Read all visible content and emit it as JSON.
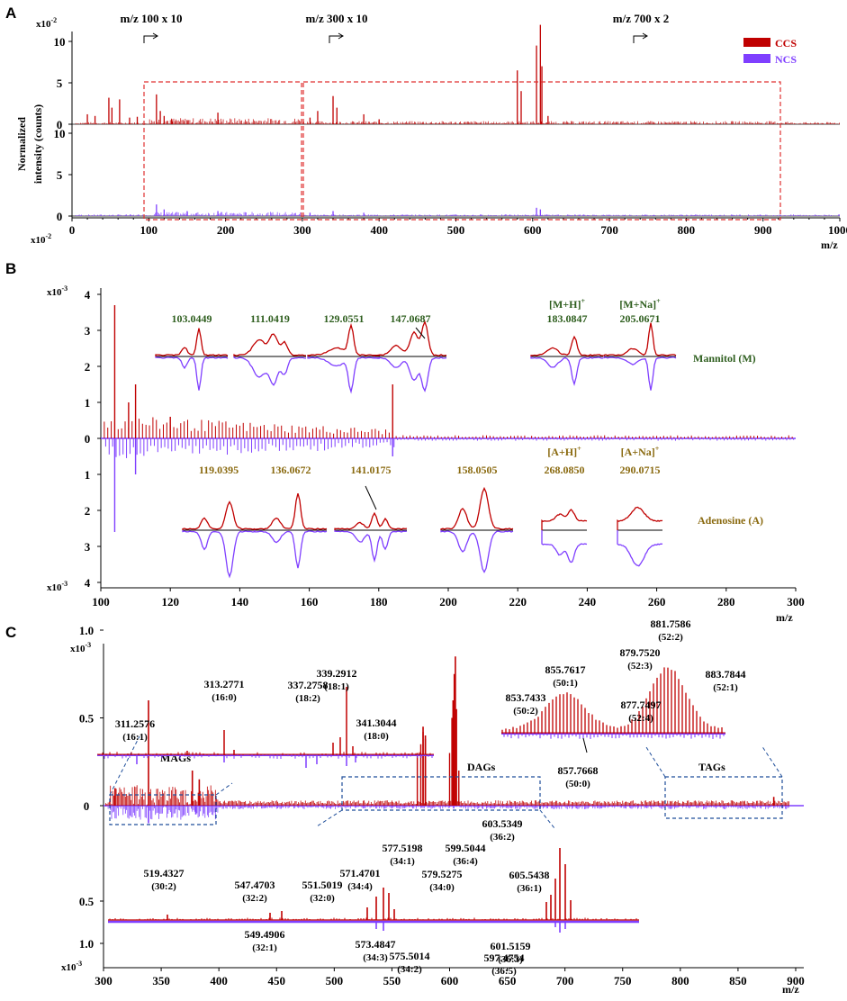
{
  "colors": {
    "ccs": "#c00000",
    "ncs": "#7f3fff",
    "box_red": "#e03030",
    "box_blue": "#1f4e9a",
    "mannitol": "#2e5e1e",
    "adenosine": "#8a6a10",
    "axis": "#000000",
    "baseline": "#000000"
  },
  "panels": {
    "A": {
      "letter": "A",
      "scale_top": "x10",
      "scale_top_exp": "-2",
      "scale_bottom": "x10",
      "scale_bottom_exp": "-2",
      "ylabel_line1": "Normalized",
      "ylabel_line2": "intensity (counts)",
      "xlabel": "m/z",
      "legend": [
        {
          "name": "CCS",
          "color": "#c00000"
        },
        {
          "name": "NCS",
          "color": "#7f3fff"
        }
      ],
      "zoom_labels": [
        "m/z 100 x 10",
        "m/z 300 x 10",
        "m/z 700 x 2"
      ],
      "zoom_positions": [
        100,
        300,
        700
      ]
    },
    "B": {
      "letter": "B",
      "scale_top": "x10",
      "scale_top_exp": "-3",
      "scale_bottom": "x10",
      "scale_bottom_exp": "-3",
      "xlabel": "m/z",
      "mannitol_label": "Mannitol (M)",
      "adenosine_label": "Adenosine (A)",
      "mannitol_insets": [
        {
          "l1": "",
          "l2": "103.0449"
        },
        {
          "l1": "",
          "l2": "111.0419"
        },
        {
          "l1": "",
          "l2": "129.0551"
        },
        {
          "l1": "",
          "l2": "147.0687"
        },
        {
          "l1": "[M+H]",
          "sup": "+",
          "l2": "183.0847"
        },
        {
          "l1": "[M+Na]",
          "sup": "+",
          "l2": "205.0671"
        }
      ],
      "adenosine_insets": [
        {
          "l1": "",
          "l2": "119.0395"
        },
        {
          "l1": "",
          "l2": "136.0672"
        },
        {
          "l1": "",
          "l2": "141.0175"
        },
        {
          "l1": "",
          "l2": "158.0505"
        },
        {
          "l1": "[A+H]",
          "sup": "+",
          "l2": "268.0850"
        },
        {
          "l1": "[A+Na]",
          "sup": "+",
          "l2": "290.0715"
        }
      ]
    },
    "C": {
      "letter": "C",
      "scale_top": "x10",
      "scale_top_exp": "-3",
      "scale_bottom": "x10",
      "scale_bottom_exp": "-3",
      "xlabel": "m/z",
      "groups": [
        "MAGs",
        "DAGs",
        "TAGs"
      ],
      "mag_labels": [
        {
          "mz": "311.2576",
          "c": "(16:1)"
        },
        {
          "mz": "313.2771",
          "c": "(16:0)"
        },
        {
          "mz": "337.2758",
          "c": "(18:2)"
        },
        {
          "mz": "339.2912",
          "c": "(18:1)"
        },
        {
          "mz": "341.3044",
          "c": "(18:0)"
        }
      ],
      "tag_labels": [
        {
          "mz": "853.7433",
          "c": "(50:2)"
        },
        {
          "mz": "855.7617",
          "c": "(50:1)"
        },
        {
          "mz": "857.7668",
          "c": "(50:0)"
        },
        {
          "mz": "877.7497",
          "c": "(52:4)"
        },
        {
          "mz": "879.7520",
          "c": "(52:3)"
        },
        {
          "mz": "881.7586",
          "c": "(52:2)"
        },
        {
          "mz": "883.7844",
          "c": "(52:1)"
        }
      ],
      "dag_labels": [
        {
          "mz": "519.4327",
          "c": "(30:2)"
        },
        {
          "mz": "547.4703",
          "c": "(32:2)"
        },
        {
          "mz": "549.4906",
          "c": "(32:1)"
        },
        {
          "mz": "551.5019",
          "c": "(32:0)"
        },
        {
          "mz": "571.4701",
          "c": "(34:4)"
        },
        {
          "mz": "573.4847",
          "c": "(34:3)"
        },
        {
          "mz": "575.5014",
          "c": "(34:2)"
        },
        {
          "mz": "577.5198",
          "c": "(34:1)"
        },
        {
          "mz": "579.5275",
          "c": "(34:0)"
        },
        {
          "mz": "597.4754",
          "c": "(36:5)"
        },
        {
          "mz": "599.5044",
          "c": "(36:4)"
        },
        {
          "mz": "601.5159",
          "c": "(36:3)"
        },
        {
          "mz": "603.5349",
          "c": "(36:2)"
        },
        {
          "mz": "605.5438",
          "c": "(36:1)"
        }
      ]
    }
  },
  "chart_data": [
    {
      "panel": "A",
      "type": "line",
      "title": "",
      "xlabel": "m/z",
      "ylabel": "Normalized intensity (counts)",
      "xlim": [
        0,
        1000
      ],
      "x_ticks": [
        0,
        100,
        200,
        300,
        400,
        500,
        600,
        700,
        800,
        900,
        1000
      ],
      "y_ticks_top": [
        0,
        5,
        10
      ],
      "y_ticks_bottom": [
        0,
        5,
        10
      ],
      "series": [
        {
          "name": "CCS",
          "peaks": [
            [
              20,
              1.2
            ],
            [
              30,
              1.0
            ],
            [
              48,
              3.2
            ],
            [
              52,
              2.0
            ],
            [
              62,
              3.0
            ],
            [
              75,
              0.8
            ],
            [
              85,
              0.9
            ],
            [
              110,
              3.6
            ],
            [
              115,
              1.6
            ],
            [
              120,
              1.0
            ],
            [
              130,
              0.6
            ],
            [
              150,
              0.5
            ],
            [
              190,
              1.4
            ],
            [
              310,
              0.8
            ],
            [
              320,
              1.6
            ],
            [
              340,
              3.4
            ],
            [
              345,
              2.0
            ],
            [
              380,
              1.2
            ],
            [
              400,
              0.6
            ],
            [
              580,
              6.5
            ],
            [
              585,
              4.0
            ],
            [
              605,
              9.5
            ],
            [
              610,
              12.0
            ],
            [
              612,
              7.0
            ],
            [
              620,
              1.0
            ]
          ]
        },
        {
          "name": "NCS",
          "peaks": [
            [
              110,
              1.4
            ],
            [
              120,
              0.8
            ],
            [
              150,
              0.6
            ],
            [
              190,
              0.6
            ],
            [
              310,
              0.4
            ],
            [
              340,
              0.6
            ],
            [
              380,
              0.4
            ],
            [
              605,
              1.0
            ],
            [
              610,
              0.8
            ]
          ]
        }
      ],
      "zoom_boxes": [
        [
          95,
          300
        ],
        [
          305,
          935
        ]
      ]
    },
    {
      "panel": "B",
      "type": "line",
      "xlabel": "m/z",
      "xlim": [
        100,
        300
      ],
      "x_ticks": [
        100,
        120,
        140,
        160,
        180,
        200,
        220,
        240,
        260,
        280,
        300
      ],
      "y_ticks_top": [
        0,
        1,
        2,
        3,
        4
      ],
      "y_ticks_bottom": [
        1,
        2,
        3,
        4
      ],
      "series": [
        {
          "name": "CCS",
          "peaks": [
            [
              104,
              3.7
            ],
            [
              110,
              1.5
            ],
            [
              108,
              1.0
            ],
            [
              184,
              1.5
            ],
            [
              120,
              0.6
            ]
          ]
        },
        {
          "name": "NCS",
          "peaks": [
            [
              104,
              -2.6
            ],
            [
              110,
              -1.0
            ],
            [
              184,
              -0.5
            ]
          ]
        }
      ]
    },
    {
      "panel": "C",
      "type": "line",
      "xlabel": "m/z",
      "xlim": [
        300,
        900
      ],
      "x_ticks": [
        300,
        350,
        400,
        450,
        500,
        550,
        600,
        650,
        700,
        750,
        800,
        850,
        900
      ],
      "y_ticks_top": [
        0,
        0.5,
        1.0
      ],
      "y_ticks_bottom": [
        0.5,
        1.0
      ],
      "series": [
        {
          "name": "CCS",
          "peaks": [
            [
              310,
              0.1
            ],
            [
              339,
              0.6
            ],
            [
              377,
              0.2
            ],
            [
              383,
              0.15
            ],
            [
              577,
              0.45
            ],
            [
              579,
              0.4
            ],
            [
              603,
              0.6
            ],
            [
              605,
              0.85
            ],
            [
              881,
              0.05
            ]
          ]
        },
        {
          "name": "NCS",
          "peaks": [
            [
              339,
              -0.1
            ],
            [
              380,
              -0.05
            ]
          ]
        }
      ]
    }
  ]
}
